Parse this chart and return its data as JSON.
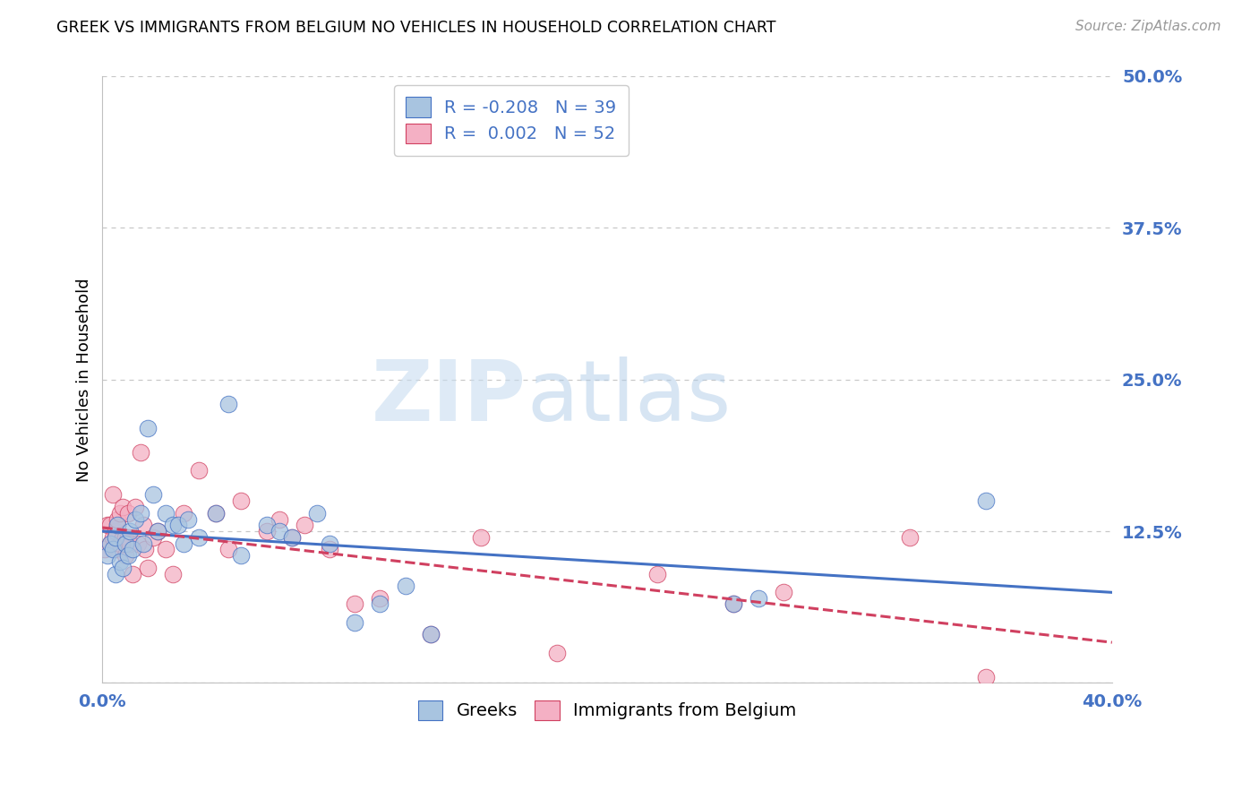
{
  "title": "GREEK VS IMMIGRANTS FROM BELGIUM NO VEHICLES IN HOUSEHOLD CORRELATION CHART",
  "source": "Source: ZipAtlas.com",
  "xlabel_label": "Greeks",
  "ylabel_label": "No Vehicles in Household",
  "legend_label1": "Greeks",
  "legend_label2": "Immigrants from Belgium",
  "r1": "-0.208",
  "n1": "39",
  "r2": "0.002",
  "n2": "52",
  "xlim": [
    0.0,
    0.4
  ],
  "ylim": [
    0.0,
    0.5
  ],
  "xticks": [
    0.0,
    0.1,
    0.2,
    0.3,
    0.4
  ],
  "yticks": [
    0.0,
    0.125,
    0.25,
    0.375,
    0.5
  ],
  "xtick_labels": [
    "0.0%",
    "",
    "",
    "",
    "40.0%"
  ],
  "ytick_labels": [
    "",
    "12.5%",
    "25.0%",
    "37.5%",
    "50.0%"
  ],
  "color_greek": "#a8c4e0",
  "color_belgium": "#f4b0c4",
  "color_trendline_greek": "#4472c4",
  "color_trendline_belgium": "#d04060",
  "background_color": "#ffffff",
  "greeks_x": [
    0.002,
    0.003,
    0.004,
    0.005,
    0.005,
    0.006,
    0.007,
    0.008,
    0.009,
    0.01,
    0.011,
    0.012,
    0.013,
    0.015,
    0.016,
    0.018,
    0.02,
    0.022,
    0.025,
    0.028,
    0.03,
    0.032,
    0.034,
    0.038,
    0.045,
    0.05,
    0.055,
    0.065,
    0.07,
    0.075,
    0.085,
    0.09,
    0.1,
    0.11,
    0.12,
    0.13,
    0.25,
    0.26,
    0.35
  ],
  "greeks_y": [
    0.105,
    0.115,
    0.11,
    0.09,
    0.12,
    0.13,
    0.1,
    0.095,
    0.115,
    0.105,
    0.125,
    0.11,
    0.135,
    0.14,
    0.115,
    0.21,
    0.155,
    0.125,
    0.14,
    0.13,
    0.13,
    0.115,
    0.135,
    0.12,
    0.14,
    0.23,
    0.105,
    0.13,
    0.125,
    0.12,
    0.14,
    0.115,
    0.05,
    0.065,
    0.08,
    0.04,
    0.065,
    0.07,
    0.15
  ],
  "belgium_x": [
    0.001,
    0.002,
    0.003,
    0.003,
    0.004,
    0.004,
    0.005,
    0.005,
    0.005,
    0.006,
    0.006,
    0.007,
    0.007,
    0.008,
    0.008,
    0.009,
    0.009,
    0.009,
    0.01,
    0.01,
    0.011,
    0.012,
    0.013,
    0.014,
    0.015,
    0.016,
    0.017,
    0.018,
    0.02,
    0.022,
    0.025,
    0.028,
    0.032,
    0.038,
    0.045,
    0.05,
    0.055,
    0.065,
    0.07,
    0.075,
    0.08,
    0.09,
    0.1,
    0.11,
    0.13,
    0.15,
    0.18,
    0.22,
    0.25,
    0.27,
    0.32,
    0.35
  ],
  "belgium_y": [
    0.11,
    0.13,
    0.115,
    0.13,
    0.12,
    0.155,
    0.12,
    0.125,
    0.11,
    0.13,
    0.135,
    0.115,
    0.14,
    0.12,
    0.145,
    0.105,
    0.12,
    0.115,
    0.12,
    0.14,
    0.115,
    0.09,
    0.145,
    0.115,
    0.19,
    0.13,
    0.11,
    0.095,
    0.12,
    0.125,
    0.11,
    0.09,
    0.14,
    0.175,
    0.14,
    0.11,
    0.15,
    0.125,
    0.135,
    0.12,
    0.13,
    0.11,
    0.065,
    0.07,
    0.04,
    0.12,
    0.025,
    0.09,
    0.065,
    0.075,
    0.12,
    0.005
  ]
}
